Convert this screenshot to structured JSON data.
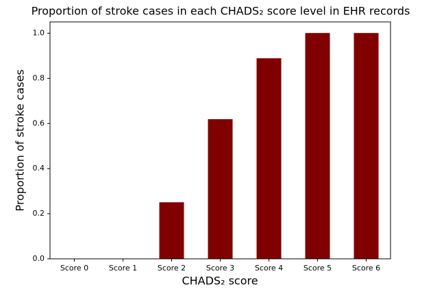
{
  "chart_data": {
    "type": "bar",
    "title": "Proportion of stroke cases in each CHADS₂ score level in EHR records",
    "xlabel": "CHADS₂ score",
    "ylabel": "Proportion of stroke cases",
    "categories": [
      "Score 0",
      "Score 1",
      "Score 2",
      "Score 3",
      "Score 4",
      "Score 5",
      "Score 6"
    ],
    "values": [
      0,
      0,
      0.25,
      0.618,
      0.888,
      1.0,
      1.0
    ],
    "color": "#800000",
    "ylim": [
      0,
      1.05
    ],
    "yticks": [
      {
        "value": 0,
        "label": "0.0"
      },
      {
        "value": 0.2,
        "label": "0.2"
      },
      {
        "value": 0.4,
        "label": "0.4"
      },
      {
        "value": 0.6,
        "label": "0.6"
      },
      {
        "value": 0.8,
        "label": "0.8"
      },
      {
        "value": 1.0,
        "label": "1.0"
      }
    ],
    "grid": false
  }
}
